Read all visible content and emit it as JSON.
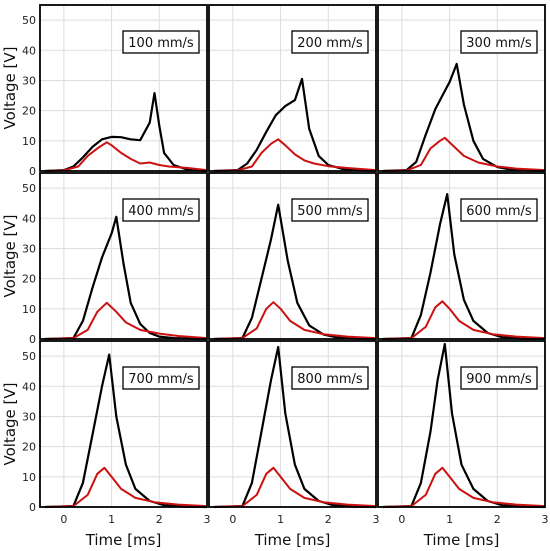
{
  "figure": {
    "xlabel": "Time [ms]",
    "ylabel": "Voltage [V]",
    "colors": {
      "black_series": "#000000",
      "red_series": "#cc1111",
      "grid": "#dddddd",
      "frame": "#000000"
    }
  },
  "chart_data": [
    {
      "type": "line",
      "annotation": "100 mm/s",
      "xlim": [
        -0.5,
        3
      ],
      "ylim": [
        0,
        55
      ],
      "xticks": [
        0,
        1,
        2,
        3
      ],
      "yticks": [
        0,
        10,
        20,
        30,
        40,
        50
      ],
      "grid": true,
      "series": [
        {
          "color": "#000000",
          "x": [
            -0.4,
            0.0,
            0.2,
            0.4,
            0.6,
            0.8,
            1.0,
            1.2,
            1.4,
            1.6,
            1.8,
            1.9,
            2.0,
            2.1,
            2.3,
            2.6,
            3.0
          ],
          "y": [
            0,
            0.3,
            1.5,
            4.5,
            8,
            10.5,
            11.3,
            11.2,
            10.5,
            10.2,
            16,
            25.8,
            15,
            6,
            2,
            0.4,
            0
          ]
        },
        {
          "color": "#cc1111",
          "x": [
            -0.4,
            0.0,
            0.3,
            0.5,
            0.7,
            0.9,
            1.0,
            1.2,
            1.4,
            1.6,
            1.8,
            2.0,
            2.2,
            2.6,
            3.0
          ],
          "y": [
            0,
            0.2,
            1.5,
            5,
            7.5,
            9.5,
            8.5,
            6,
            4,
            2.5,
            2.8,
            2,
            1.5,
            1,
            0.3
          ]
        }
      ]
    },
    {
      "type": "line",
      "annotation": "200 mm/s",
      "xlim": [
        -0.5,
        3
      ],
      "ylim": [
        0,
        55
      ],
      "xticks": [
        0,
        1,
        2,
        3
      ],
      "yticks": [
        0,
        10,
        20,
        30,
        40,
        50
      ],
      "grid": true,
      "series": [
        {
          "color": "#000000",
          "x": [
            -0.4,
            0.1,
            0.3,
            0.5,
            0.7,
            0.9,
            1.1,
            1.3,
            1.45,
            1.6,
            1.8,
            2.0,
            2.3,
            2.7,
            3.0
          ],
          "y": [
            0,
            0.3,
            2.5,
            7,
            13,
            18.5,
            21.5,
            23.5,
            30.5,
            14,
            5,
            2,
            0.7,
            0.2,
            0
          ]
        },
        {
          "color": "#cc1111",
          "x": [
            -0.4,
            0.1,
            0.4,
            0.6,
            0.8,
            0.95,
            1.1,
            1.3,
            1.5,
            1.7,
            2.0,
            2.4,
            3.0
          ],
          "y": [
            0,
            0.2,
            1.5,
            6,
            9,
            10.5,
            8.5,
            5.5,
            3.5,
            2.5,
            1.6,
            1,
            0.3
          ]
        }
      ]
    },
    {
      "type": "line",
      "annotation": "300 mm/s",
      "xlim": [
        -0.5,
        3
      ],
      "ylim": [
        0,
        55
      ],
      "xticks": [
        0,
        1,
        2,
        3
      ],
      "yticks": [
        0,
        10,
        20,
        30,
        40,
        50
      ],
      "grid": true,
      "series": [
        {
          "color": "#000000",
          "x": [
            -0.4,
            0.1,
            0.3,
            0.5,
            0.7,
            0.9,
            1.0,
            1.15,
            1.3,
            1.5,
            1.7,
            2.0,
            2.3,
            2.7,
            3.0
          ],
          "y": [
            0,
            0.3,
            3,
            12,
            20.5,
            26.5,
            29.5,
            35.5,
            22,
            10,
            4,
            1.3,
            0.4,
            0.1,
            0
          ]
        },
        {
          "color": "#cc1111",
          "x": [
            -0.4,
            0.1,
            0.4,
            0.6,
            0.8,
            0.9,
            1.1,
            1.3,
            1.6,
            2.0,
            2.4,
            3.0
          ],
          "y": [
            0,
            0.2,
            2,
            7.5,
            10,
            11,
            8,
            5,
            2.8,
            1.5,
            0.8,
            0.3
          ]
        }
      ]
    },
    {
      "type": "line",
      "annotation": "400 mm/s",
      "xlim": [
        -0.5,
        3
      ],
      "ylim": [
        0,
        55
      ],
      "xticks": [
        0,
        1,
        2,
        3
      ],
      "yticks": [
        0,
        10,
        20,
        30,
        40,
        50
      ],
      "grid": true,
      "series": [
        {
          "color": "#000000",
          "x": [
            -0.4,
            0.2,
            0.4,
            0.6,
            0.8,
            1.0,
            1.1,
            1.25,
            1.4,
            1.6,
            1.8,
            2.0,
            2.3,
            2.7,
            3.0
          ],
          "y": [
            0,
            0.3,
            6,
            17,
            27,
            35,
            40.5,
            25,
            12,
            5,
            2,
            0.8,
            0.3,
            0.1,
            0
          ]
        },
        {
          "color": "#cc1111",
          "x": [
            -0.4,
            0.2,
            0.5,
            0.7,
            0.9,
            1.1,
            1.3,
            1.6,
            2.0,
            2.4,
            3.0
          ],
          "y": [
            0,
            0.3,
            3,
            9,
            12,
            9,
            5.5,
            3,
            1.8,
            1,
            0.3
          ]
        }
      ]
    },
    {
      "type": "line",
      "annotation": "500 mm/s",
      "xlim": [
        -0.5,
        3
      ],
      "ylim": [
        0,
        55
      ],
      "xticks": [
        0,
        1,
        2,
        3
      ],
      "yticks": [
        0,
        10,
        20,
        30,
        40,
        50
      ],
      "grid": true,
      "series": [
        {
          "color": "#000000",
          "x": [
            -0.4,
            0.2,
            0.4,
            0.6,
            0.8,
            0.95,
            1.15,
            1.35,
            1.6,
            1.9,
            2.2,
            2.6,
            3.0
          ],
          "y": [
            0,
            0.3,
            7,
            20,
            33,
            44.5,
            26,
            12,
            4.5,
            1.5,
            0.5,
            0.1,
            0
          ]
        },
        {
          "color": "#cc1111",
          "x": [
            -0.4,
            0.2,
            0.5,
            0.7,
            0.85,
            1.0,
            1.2,
            1.5,
            1.9,
            2.4,
            3.0
          ],
          "y": [
            0,
            0.3,
            3.5,
            10,
            12.2,
            10,
            6,
            3,
            1.6,
            0.8,
            0.3
          ]
        }
      ]
    },
    {
      "type": "line",
      "annotation": "600 mm/s",
      "xlim": [
        -0.5,
        3
      ],
      "ylim": [
        0,
        55
      ],
      "xticks": [
        0,
        1,
        2,
        3
      ],
      "yticks": [
        0,
        10,
        20,
        30,
        40,
        50
      ],
      "grid": true,
      "series": [
        {
          "color": "#000000",
          "x": [
            -0.4,
            0.2,
            0.4,
            0.6,
            0.8,
            0.95,
            1.1,
            1.3,
            1.5,
            1.8,
            2.1,
            2.5,
            3.0
          ],
          "y": [
            0,
            0.3,
            8,
            22,
            38,
            48,
            28,
            13,
            6,
            2,
            0.6,
            0.1,
            0
          ]
        },
        {
          "color": "#cc1111",
          "x": [
            -0.4,
            0.2,
            0.5,
            0.7,
            0.85,
            1.0,
            1.2,
            1.5,
            1.9,
            2.4,
            3.0
          ],
          "y": [
            0,
            0.3,
            4,
            10.5,
            12.5,
            10,
            6,
            3,
            1.6,
            0.8,
            0.3
          ]
        }
      ]
    },
    {
      "type": "line",
      "annotation": "700 mm/s",
      "xlim": [
        -0.5,
        3
      ],
      "ylim": [
        0,
        55
      ],
      "xticks": [
        0,
        1,
        2,
        3
      ],
      "yticks": [
        0,
        10,
        20,
        30,
        40,
        50
      ],
      "grid": true,
      "series": [
        {
          "color": "#000000",
          "x": [
            -0.4,
            0.2,
            0.4,
            0.6,
            0.8,
            0.95,
            1.1,
            1.3,
            1.5,
            1.8,
            2.1,
            2.5,
            3.0
          ],
          "y": [
            0,
            0.3,
            8,
            24,
            40,
            50.5,
            30,
            14,
            6,
            2,
            0.6,
            0.1,
            0
          ]
        },
        {
          "color": "#cc1111",
          "x": [
            -0.4,
            0.2,
            0.5,
            0.7,
            0.85,
            1.0,
            1.2,
            1.5,
            1.9,
            2.4,
            3.0
          ],
          "y": [
            0,
            0.3,
            4,
            11,
            13,
            10,
            6,
            3,
            1.6,
            0.8,
            0.3
          ]
        }
      ]
    },
    {
      "type": "line",
      "annotation": "800 mm/s",
      "xlim": [
        -0.5,
        3
      ],
      "ylim": [
        0,
        55
      ],
      "xticks": [
        0,
        1,
        2,
        3
      ],
      "yticks": [
        0,
        10,
        20,
        30,
        40,
        50
      ],
      "grid": true,
      "series": [
        {
          "color": "#000000",
          "x": [
            -0.4,
            0.2,
            0.4,
            0.6,
            0.8,
            0.95,
            1.1,
            1.3,
            1.5,
            1.8,
            2.1,
            2.5,
            3.0
          ],
          "y": [
            0,
            0.3,
            8,
            25,
            42,
            53,
            31,
            14,
            6,
            2,
            0.6,
            0.1,
            0
          ]
        },
        {
          "color": "#cc1111",
          "x": [
            -0.4,
            0.2,
            0.5,
            0.7,
            0.85,
            1.0,
            1.2,
            1.5,
            1.9,
            2.4,
            3.0
          ],
          "y": [
            0,
            0.3,
            4,
            11,
            13,
            10,
            6,
            3,
            1.6,
            0.8,
            0.3
          ]
        }
      ]
    },
    {
      "type": "line",
      "annotation": "900 mm/s",
      "xlim": [
        -0.5,
        3
      ],
      "ylim": [
        0,
        55
      ],
      "xticks": [
        0,
        1,
        2,
        3
      ],
      "yticks": [
        0,
        10,
        20,
        30,
        40,
        50
      ],
      "grid": true,
      "series": [
        {
          "color": "#000000",
          "x": [
            -0.4,
            0.2,
            0.4,
            0.6,
            0.75,
            0.9,
            1.05,
            1.25,
            1.5,
            1.8,
            2.1,
            2.5,
            3.0
          ],
          "y": [
            0,
            0.3,
            8,
            25,
            42,
            54,
            31,
            14,
            6,
            2,
            0.6,
            0.1,
            0
          ]
        },
        {
          "color": "#cc1111",
          "x": [
            -0.4,
            0.2,
            0.5,
            0.7,
            0.85,
            1.0,
            1.2,
            1.5,
            1.9,
            2.4,
            3.0
          ],
          "y": [
            0,
            0.3,
            4,
            11,
            13,
            10,
            6,
            3,
            1.6,
            0.8,
            0.3
          ]
        }
      ]
    }
  ]
}
